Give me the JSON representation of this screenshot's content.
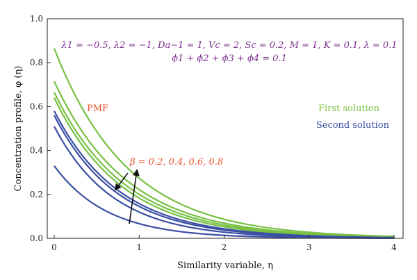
{
  "chart_data": {
    "type": "line",
    "xlabel": "Similarity variable, η",
    "ylabel": "Concentration profile, φ (η)",
    "xlim": [
      0,
      4
    ],
    "ylim": [
      0,
      1.0
    ],
    "x_ticks": [
      "0",
      "1",
      "2",
      "3",
      "4"
    ],
    "y_ticks": [
      "0.0",
      "0.2",
      "0.4",
      "0.6",
      "0.8",
      "1.0"
    ],
    "grid": false,
    "annotations": {
      "params_line1": "λ1 = −0.5, λ2 = −1, Da−1 = 1, Vc = 2, Sc = 0.2, M = 1, K = 0.1, λ = 0.1",
      "params_line2": "ϕ1 + ϕ2 + ϕ3 + ϕ4 = 0.1",
      "pmf": "PMF",
      "beta": "β = 0.2, 0.4, 0.6, 0.8"
    },
    "legend": [
      {
        "label": "First solution",
        "color": "#77c043"
      },
      {
        "label": "Second solution",
        "color": "#3a4ea3"
      }
    ],
    "series": [
      {
        "solution": "first",
        "beta": 0.2,
        "phi0": 0.64,
        "decay": 1.25
      },
      {
        "solution": "first",
        "beta": 0.4,
        "phi0": 0.665,
        "decay": 1.2
      },
      {
        "solution": "first",
        "beta": 0.6,
        "phi0": 0.715,
        "decay": 1.17
      },
      {
        "solution": "first",
        "beta": 0.8,
        "phi0": 0.865,
        "decay": 1.15
      },
      {
        "solution": "second",
        "beta": 0.2,
        "phi0": 0.33,
        "decay": 1.6
      },
      {
        "solution": "second",
        "beta": 0.4,
        "phi0": 0.51,
        "decay": 1.45
      },
      {
        "solution": "second",
        "beta": 0.6,
        "phi0": 0.56,
        "decay": 1.35
      },
      {
        "solution": "second",
        "beta": 0.8,
        "phi0": 0.58,
        "decay": 1.3
      }
    ]
  }
}
